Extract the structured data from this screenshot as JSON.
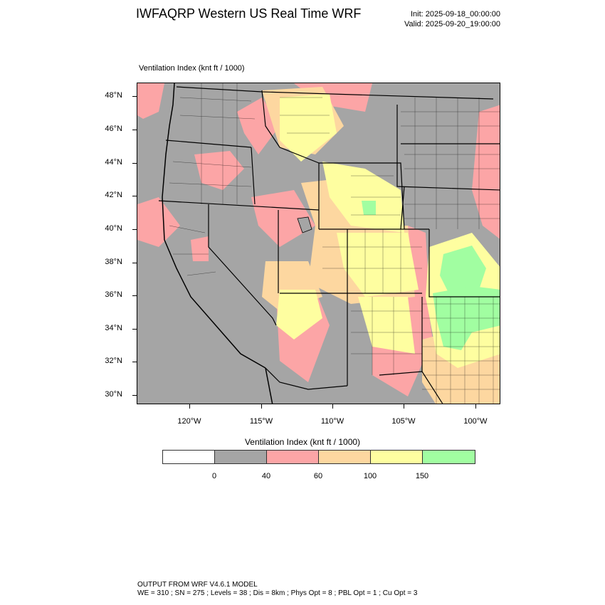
{
  "header": {
    "title": "IWFAQRP Western US Real Time WRF",
    "init": "Init: 2025-09-18_00:00:00",
    "valid": "Valid: 2025-09-20_19:00:00"
  },
  "plot_label": "Ventilation Index   (knt ft / 1000)",
  "latitude_labels": [
    "48°N",
    "46°N",
    "44°N",
    "42°N",
    "40°N",
    "38°N",
    "36°N",
    "34°N",
    "32°N",
    "30°N"
  ],
  "longitude_labels": [
    "120°W",
    "115°W",
    "110°W",
    "105°W",
    "100°W"
  ],
  "colorbar": {
    "title": "Ventilation Index  (knt ft / 1000)",
    "colors": [
      "#ffffff",
      "#a5a5a5",
      "#fca5a6",
      "#fdd7a0",
      "#fefea0",
      "#a1fea1"
    ],
    "labels": [
      "0",
      "40",
      "60",
      "100",
      "150"
    ]
  },
  "map_colors": {
    "background": "#a5a5a5",
    "red": "#fca5a6",
    "orange": "#fdd7a0",
    "yellow": "#fefea0",
    "green": "#a1fea1"
  },
  "footer": {
    "line1": "OUTPUT FROM WRF V4.6.1 MODEL",
    "line2": "WE = 310 ; SN = 275 ; Levels = 38 ; Dis = 8km ; Phys Opt = 8 ; PBL Opt = 1 ; Cu Opt = 3"
  }
}
